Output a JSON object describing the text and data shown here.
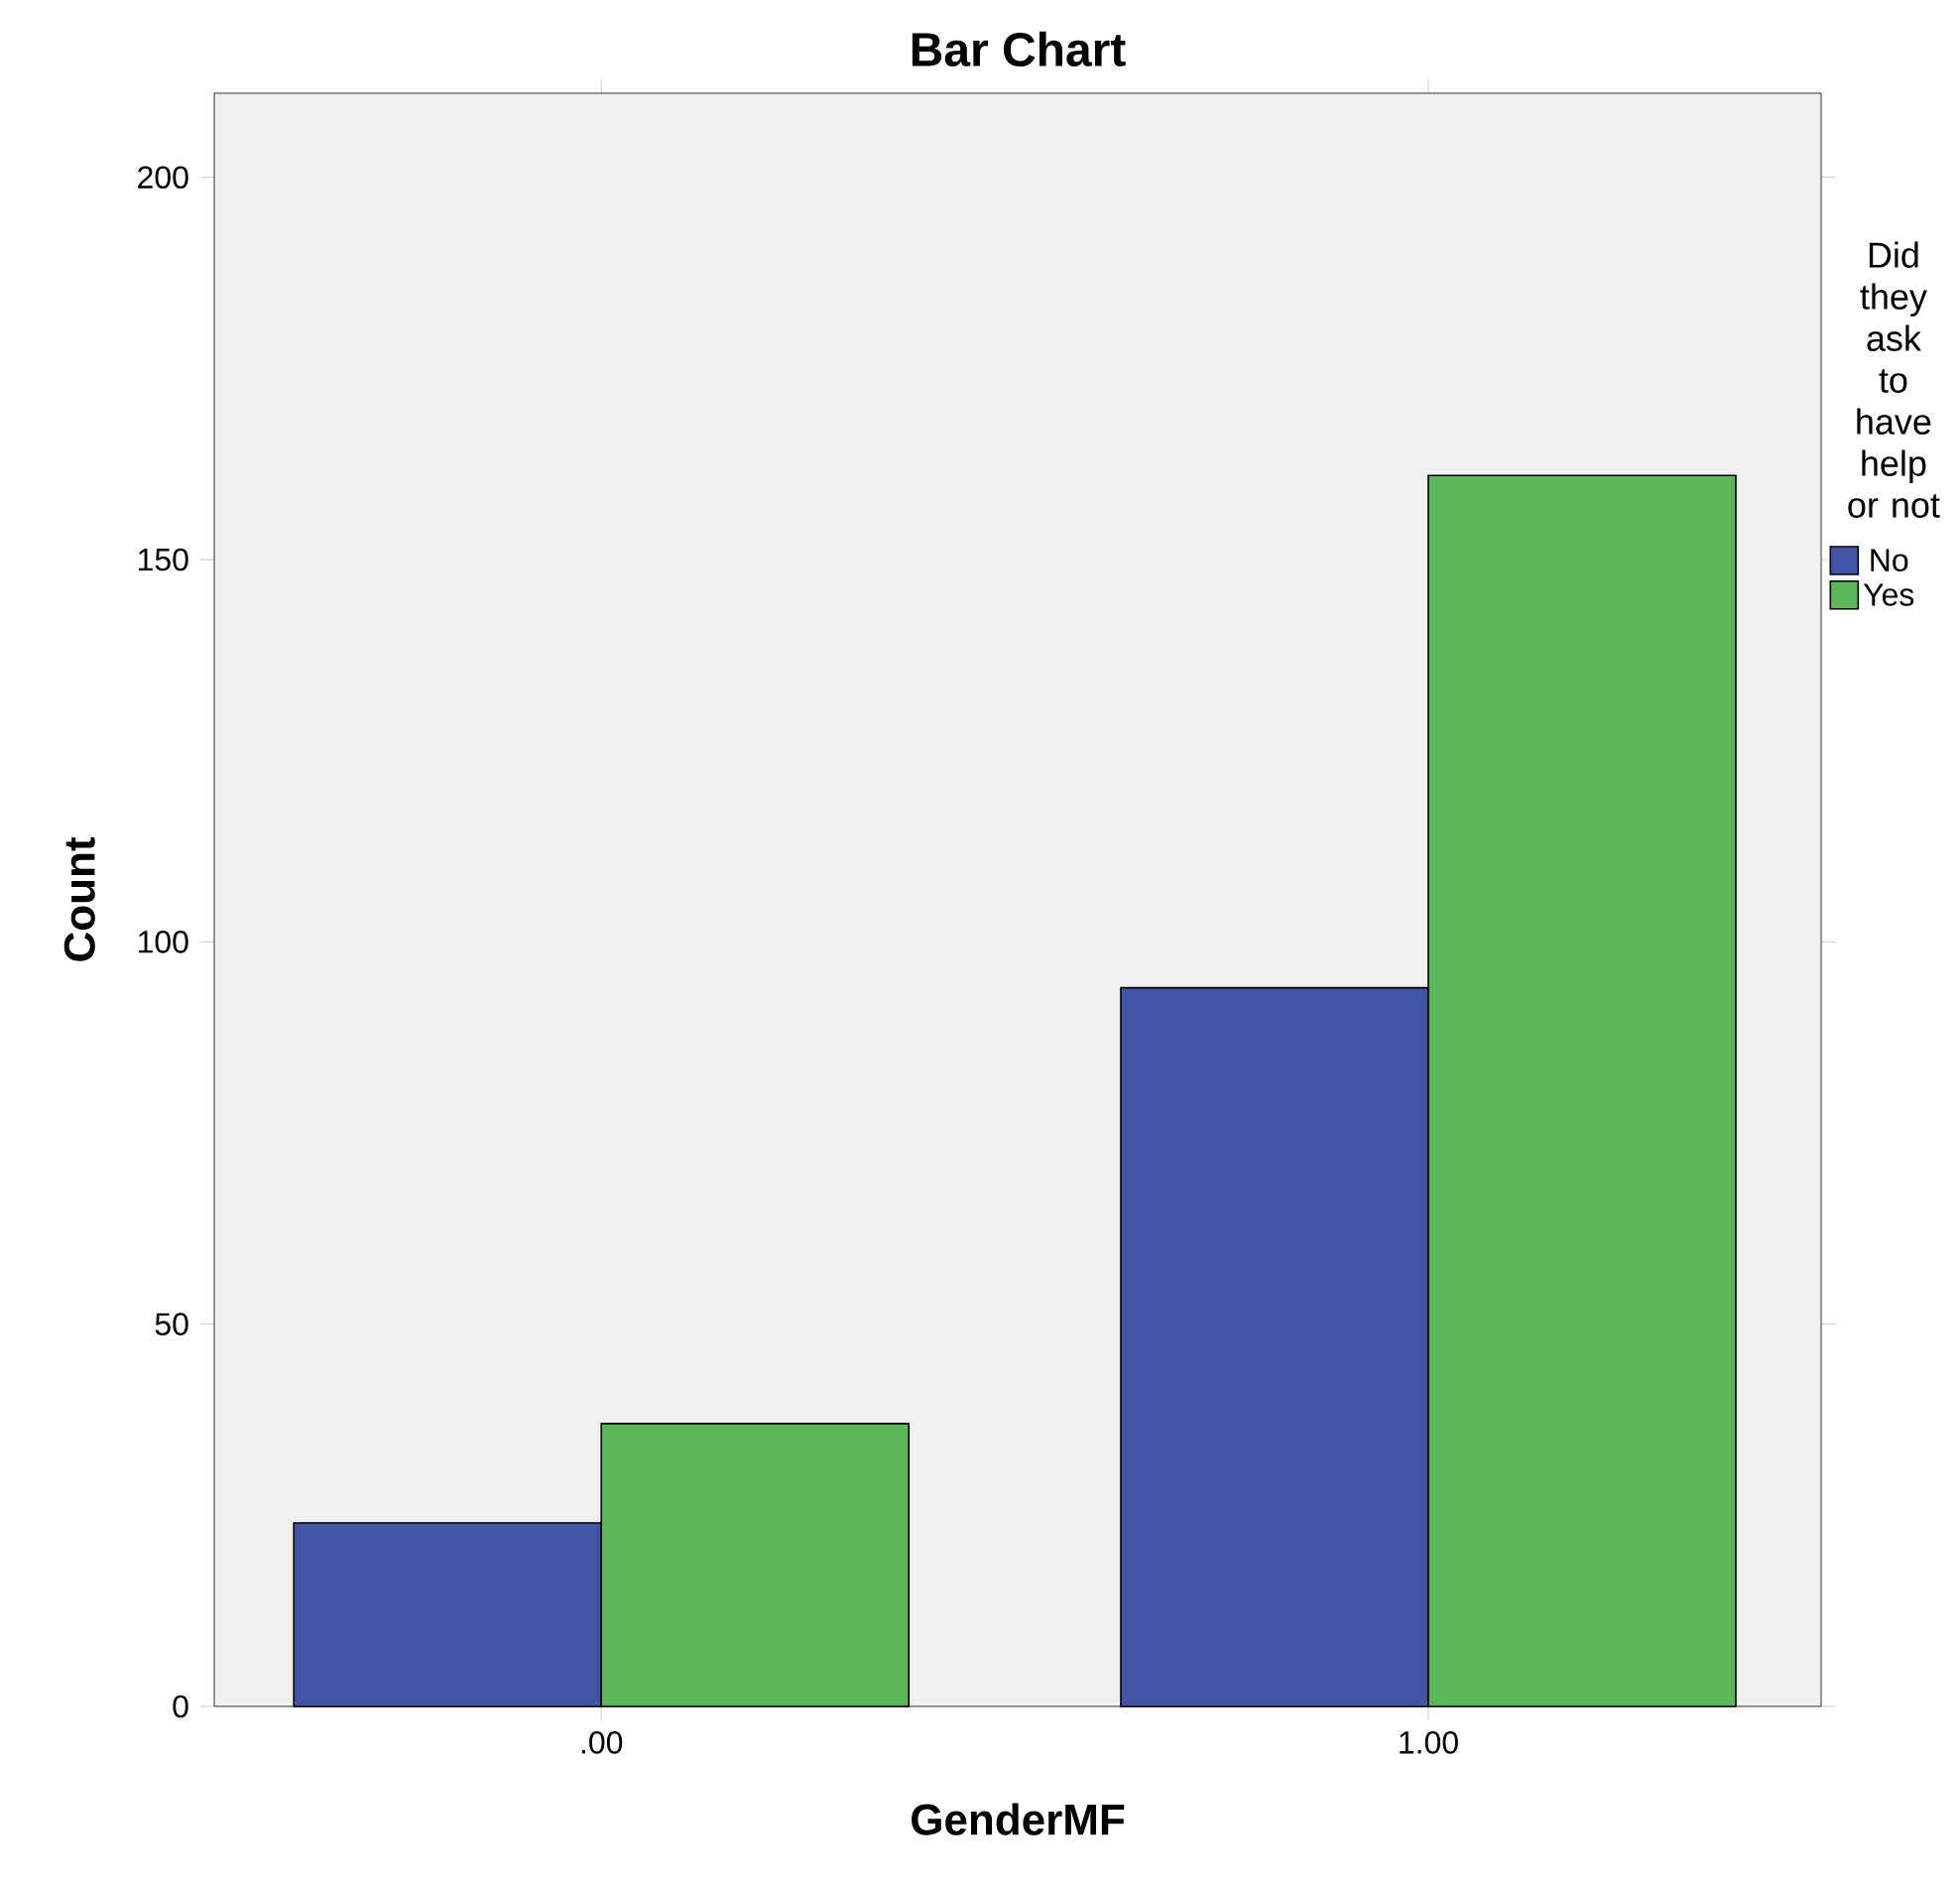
{
  "chart_data": {
    "type": "bar",
    "title": "Bar Chart",
    "xlabel": "GenderMF",
    "ylabel": "Count",
    "legend_title": "Did they ask to have help or not",
    "categories": [
      ".00",
      "1.00"
    ],
    "series": [
      {
        "name": "No",
        "color": "#4155a4",
        "values": [
          24,
          94
        ]
      },
      {
        "name": "Yes",
        "color": "#5cb65a",
        "values": [
          37,
          161
        ]
      }
    ],
    "ylim": [
      0,
      211
    ],
    "yticks": [
      0,
      50,
      100,
      150,
      200
    ],
    "legend": "right"
  }
}
